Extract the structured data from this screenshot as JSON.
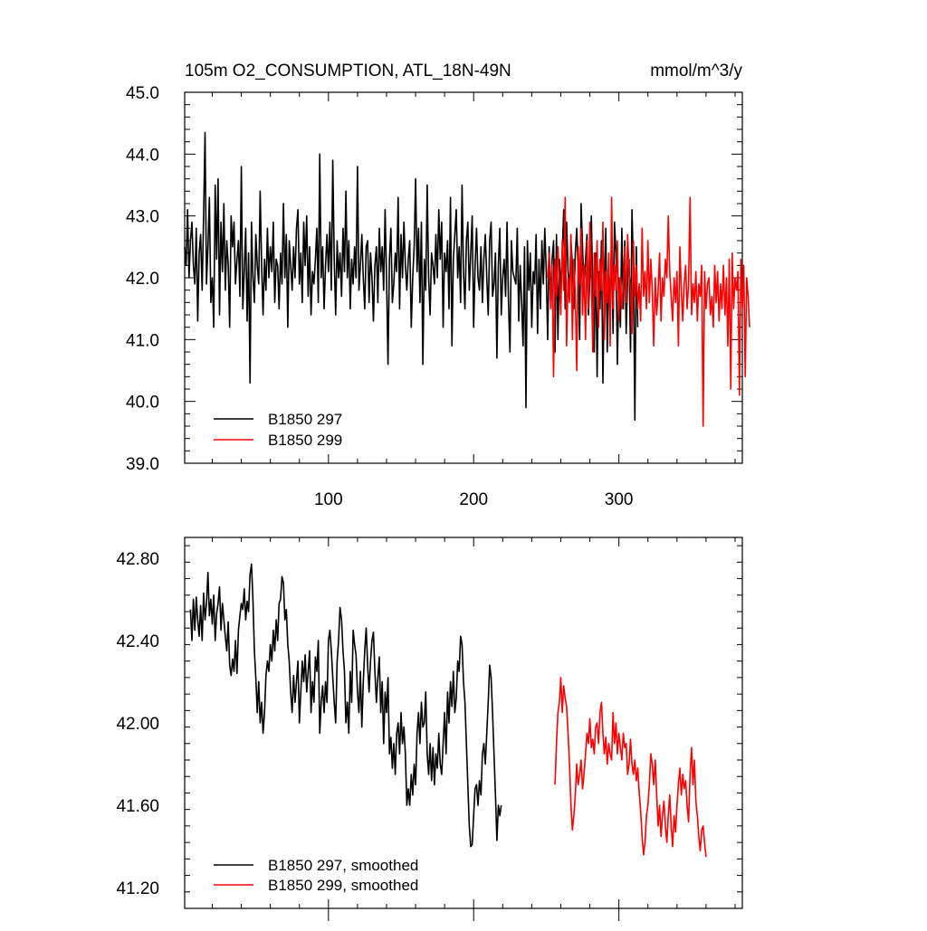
{
  "chart_data": [
    {
      "type": "line",
      "title": "105m O2_CONSUMPTION, ATL_18N-49N",
      "units": "mmol/m^3/y",
      "xlim": [
        1,
        385
      ],
      "ylim": [
        39.0,
        45.0
      ],
      "x_ticks": [
        100,
        200,
        300
      ],
      "x_tick_labels": [
        "100",
        "200",
        "300"
      ],
      "y_ticks": [
        39.0,
        40.0,
        41.0,
        42.0,
        43.0,
        44.0,
        45.0
      ],
      "y_tick_labels": [
        "39.0",
        "40.0",
        "41.0",
        "42.0",
        "43.0",
        "44.0",
        "45.0"
      ],
      "legend_position": "bottom-left",
      "series": [
        {
          "name": "B1850 297",
          "color": "#000000",
          "x_start": 1,
          "values": [
            42.5,
            42.2,
            43.1,
            42.0,
            42.6,
            42.9,
            42.2,
            41.9,
            42.8,
            41.3,
            42.4,
            42.7,
            41.8,
            43.0,
            44.35,
            41.9,
            42.5,
            43.3,
            41.6,
            42.0,
            41.2,
            43.5,
            42.3,
            43.6,
            41.4,
            42.9,
            42.1,
            43.2,
            41.8,
            42.6,
            42.2,
            41.2,
            43.0,
            42.5,
            42.9,
            41.9,
            42.3,
            42.6,
            41.7,
            43.8,
            41.5,
            42.1,
            42.8,
            41.3,
            42.4,
            40.3,
            42.9,
            42.0,
            41.6,
            42.7,
            42.2,
            41.9,
            43.4,
            42.2,
            41.4,
            42.3,
            41.8,
            42.8,
            42.0,
            42.5,
            42.1,
            42.9,
            41.6,
            42.3,
            42.2,
            41.5,
            42.4,
            41.9,
            43.2,
            42.0,
            42.7,
            41.2,
            42.6,
            42.2,
            41.8,
            42.5,
            42.0,
            42.8,
            43.1,
            41.9,
            42.4,
            41.6,
            42.9,
            42.2,
            43.0,
            41.7,
            42.5,
            41.4,
            42.1,
            41.9,
            42.3,
            42.8,
            41.6,
            44.0,
            42.0,
            42.5,
            41.5,
            42.2,
            42.7,
            42.1,
            42.9,
            41.8,
            43.9,
            42.3,
            41.4,
            42.6,
            42.0,
            42.4,
            41.7,
            42.8,
            42.1,
            43.4,
            42.0,
            42.6,
            41.5,
            42.3,
            41.9,
            42.5,
            42.0,
            43.8,
            41.8,
            42.2,
            42.7,
            42.0,
            41.5,
            42.5,
            42.6,
            41.6,
            42.4,
            42.0,
            41.3,
            42.2,
            42.5,
            41.6,
            42.8,
            42.1,
            42.5,
            41.8,
            43.1,
            42.0,
            40.6,
            42.3,
            42.8,
            41.6,
            41.9,
            42.4,
            42.1,
            43.3,
            41.5,
            42.7,
            42.0,
            42.9,
            42.2,
            41.8,
            42.3,
            42.6,
            41.2,
            42.0,
            42.5,
            43.6,
            42.1,
            42.8,
            41.6,
            42.9,
            40.6,
            42.3,
            41.8,
            43.5,
            42.0,
            41.4,
            42.4,
            42.2,
            41.9,
            42.7,
            42.0,
            43.1,
            42.3,
            42.9,
            41.2,
            42.4,
            42.1,
            42.6,
            41.5,
            43.3,
            40.9,
            42.3,
            42.7,
            43.1,
            42.0,
            42.5,
            41.6,
            43.5,
            42.1,
            41.5,
            42.6,
            42.9,
            41.8,
            42.4,
            43.0,
            41.2,
            42.2,
            42.8,
            42.0,
            41.8,
            42.5,
            41.6,
            42.3,
            42.7,
            42.0,
            41.4,
            42.6,
            42.9,
            41.7,
            41.9,
            42.4,
            40.7,
            42.2,
            42.8,
            41.4,
            42.0,
            42.3,
            41.7,
            42.9,
            41.6,
            40.8,
            42.6,
            42.1,
            42.0,
            41.9,
            42.8,
            41.3,
            42.2,
            41.6,
            40.9,
            42.5,
            39.9,
            42.6,
            41.8,
            42.4,
            41.2,
            42.1,
            41.9,
            42.7,
            41.1,
            42.3,
            41.5,
            42.6,
            41.9,
            42.8,
            42.1,
            41.0,
            42.5,
            41.6,
            42.3,
            42.6,
            40.8,
            42.7,
            41.0,
            42.3,
            41.8,
            42.4,
            43.1,
            41.5,
            42.9,
            42.1,
            41.8,
            42.6,
            42.2,
            41.5,
            42.4,
            42.8,
            42.1,
            41.0,
            43.2,
            42.5,
            41.8,
            42.3,
            42.7,
            41.4,
            42.0,
            43.0,
            41.8,
            40.8,
            42.4,
            40.4,
            42.1,
            41.5,
            42.6,
            40.3,
            41.9,
            42.8,
            40.8,
            42.3,
            41.4,
            42.7,
            41.1,
            42.9,
            42.4,
            40.6,
            42.0,
            41.2,
            42.8,
            41.5,
            42.6,
            41.1,
            42.0,
            42.3,
            40.8,
            43.1,
            42.1,
            39.7,
            42.5,
            41.2
          ]
        },
        {
          "name": "B1850 299",
          "color": "#ff0000",
          "x_start": 251,
          "values": [
            42.0,
            42.4,
            41.5,
            42.2,
            40.4,
            42.3,
            41.7,
            42.5,
            42.0,
            41.4,
            42.6,
            41.8,
            43.3,
            40.9,
            42.0,
            41.6,
            42.7,
            41.0,
            42.3,
            41.7,
            40.5,
            42.5,
            41.9,
            42.8,
            41.4,
            42.2,
            41.0,
            42.6,
            41.5,
            42.9,
            42.1,
            40.8,
            42.4,
            41.7,
            42.6,
            41.2,
            42.3,
            41.8,
            42.9,
            41.0,
            42.1,
            41.6,
            42.4,
            40.9,
            43.3,
            41.5,
            42.2,
            41.8,
            42.6,
            41.3,
            42.0,
            41.5,
            41.9,
            42.5,
            41.6,
            42.7,
            42.1,
            41.8,
            41.1,
            42.6,
            41.7,
            42.2,
            41.5,
            41.9,
            41.3,
            42.8,
            41.7,
            42.1,
            41.5,
            42.6,
            41.6,
            42.3,
            41.8,
            40.9,
            42.0,
            41.4,
            41.8,
            42.4,
            41.3,
            42.0,
            41.7,
            42.3,
            42.0,
            43.0,
            42.1,
            41.7,
            41.3,
            42.0,
            41.6,
            42.1,
            40.9,
            42.5,
            41.8,
            41.3,
            41.9,
            42.2,
            41.5,
            41.9,
            43.3,
            41.4,
            41.9,
            41.6,
            42.1,
            41.3,
            41.9,
            41.7,
            42.2,
            39.6,
            42.1,
            41.5,
            41.9,
            42.0,
            41.4,
            41.7,
            41.2,
            42.2,
            41.6,
            42.1,
            41.3,
            41.9,
            41.5,
            42.2,
            41.4,
            42.0,
            40.9,
            42.3,
            40.2,
            42.4,
            41.5,
            42.0,
            41.8,
            42.1,
            40.1,
            42.3,
            41.5,
            42.2,
            40.4,
            42.0,
            41.7,
            41.2
          ]
        }
      ]
    },
    {
      "type": "line",
      "xlim": [
        1,
        385
      ],
      "ylim": [
        41.1,
        42.9
      ],
      "x_ticks": [
        100,
        200,
        300
      ],
      "y_ticks": [
        41.2,
        41.6,
        42.0,
        42.4,
        42.8
      ],
      "y_tick_labels": [
        "41.20",
        "41.60",
        "42.00",
        "42.40",
        "42.80"
      ],
      "legend_position": "bottom-left",
      "series": [
        {
          "name": "B1850 297, smoothed",
          "color": "#000000",
          "x_start": 5,
          "values": [
            42.55,
            42.4,
            42.6,
            42.45,
            42.61,
            42.5,
            42.42,
            42.57,
            42.4,
            42.63,
            42.5,
            42.58,
            42.73,
            42.52,
            42.6,
            42.48,
            42.62,
            42.4,
            42.53,
            42.58,
            42.66,
            42.45,
            42.58,
            42.5,
            42.42,
            42.35,
            42.49,
            42.28,
            42.23,
            42.31,
            42.25,
            42.4,
            42.24,
            42.45,
            42.52,
            42.58,
            42.55,
            42.65,
            42.5,
            42.59,
            42.54,
            42.72,
            42.77,
            42.6,
            42.35,
            42.22,
            42.05,
            42.2,
            42.0,
            42.1,
            41.95,
            42.05,
            42.23,
            42.3,
            42.25,
            42.38,
            42.3,
            42.45,
            42.35,
            42.5,
            42.4,
            42.58,
            42.6,
            42.71,
            42.68,
            42.5,
            42.55,
            42.38,
            42.3,
            42.15,
            42.05,
            42.23,
            42.1,
            42.2,
            42.3,
            42.0,
            42.15,
            42.3,
            42.2,
            42.33,
            42.15,
            42.25,
            42.35,
            42.05,
            42.2,
            42.1,
            42.32,
            42.25,
            42.4,
            41.95,
            42.1,
            42.18,
            42.05,
            42.2,
            42.1,
            42.4,
            42.45,
            42.35,
            42.22,
            42.1,
            42.0,
            42.3,
            42.4,
            42.56,
            42.5,
            42.35,
            42.25,
            42.0,
            42.1,
            41.95,
            42.25,
            42.1,
            42.45,
            42.38,
            42.33,
            42.15,
            42.05,
            42.25,
            41.98,
            42.2,
            42.35,
            42.46,
            42.28,
            42.15,
            42.3,
            42.4,
            42.44,
            42.25,
            42.1,
            42.22,
            42.32,
            42.05,
            42.2,
            41.9,
            42.15,
            42.05,
            42.22,
            41.85,
            41.93,
            41.78,
            41.9,
            41.75,
            41.95,
            42.0,
            41.85,
            42.05,
            41.9,
            41.98,
            41.85,
            41.6,
            41.68,
            41.6,
            41.75,
            41.65,
            41.8,
            41.7,
            41.95,
            42.05,
            41.9,
            42.1,
            41.98,
            42.0,
            42.15,
            41.85,
            41.75,
            41.9,
            41.72,
            41.88,
            41.7,
            41.85,
            41.78,
            41.95,
            41.8,
            41.75,
            41.9,
            42.05,
            41.85,
            42.15,
            42.0,
            42.2,
            42.08,
            42.25,
            42.05,
            42.12,
            42.3,
            42.25,
            42.42,
            42.38,
            42.2,
            42.1,
            41.9,
            41.7,
            41.5,
            41.4,
            41.41,
            41.55,
            41.68,
            41.7,
            41.6,
            41.72,
            41.65,
            41.85,
            41.9,
            41.8,
            41.95,
            42.1,
            42.28,
            42.22,
            42.05,
            41.85,
            41.65,
            41.43,
            41.6,
            41.55,
            41.6
          ]
        },
        {
          "name": "B1850 299, smoothed",
          "color": "#ff0000",
          "x_start": 256,
          "values": [
            41.7,
            41.9,
            42.05,
            42.1,
            42.22,
            42.05,
            42.18,
            42.12,
            42.08,
            41.95,
            41.8,
            41.6,
            41.48,
            41.55,
            41.65,
            41.8,
            41.7,
            41.75,
            41.82,
            41.68,
            41.75,
            41.85,
            41.95,
            41.9,
            42.02,
            41.88,
            41.92,
            41.85,
            41.98,
            42.0,
            41.9,
            42.05,
            42.1,
            41.95,
            41.85,
            41.93,
            41.8,
            41.9,
            41.85,
            41.82,
            42.05,
            41.9,
            42.0,
            41.85,
            41.95,
            41.88,
            41.82,
            41.95,
            41.88,
            41.9,
            41.75,
            41.8,
            41.92,
            41.8,
            41.75,
            41.82,
            41.72,
            41.78,
            41.66,
            41.57,
            41.45,
            41.36,
            41.42,
            41.55,
            41.6,
            41.7,
            41.85,
            41.8,
            41.7,
            41.82,
            41.65,
            41.5,
            41.6,
            41.45,
            41.55,
            41.62,
            41.5,
            41.42,
            41.55,
            41.65,
            41.5,
            41.4,
            41.55,
            41.47,
            41.6,
            41.7,
            41.78,
            41.65,
            41.75,
            41.68,
            41.72,
            41.6,
            41.52,
            41.75,
            41.88,
            41.7,
            41.82,
            41.62,
            41.55,
            41.45,
            41.38,
            41.48,
            41.5,
            41.42,
            41.35
          ]
        }
      ]
    }
  ]
}
